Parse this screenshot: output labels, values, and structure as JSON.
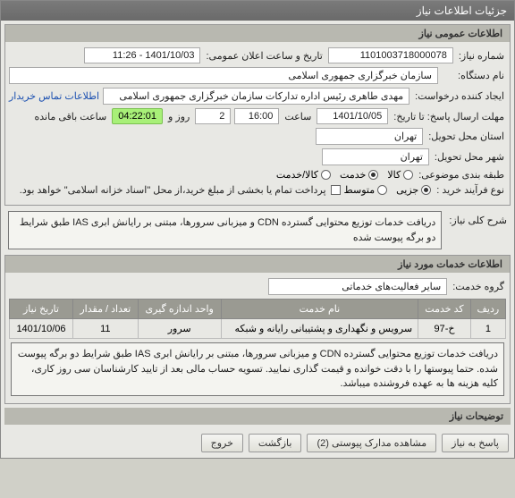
{
  "window": {
    "title": "جزئیات اطلاعات نیاز"
  },
  "general": {
    "header": "اطلاعات عمومی نیاز",
    "need_no_label": "شماره نیاز:",
    "need_no": "1101003718000078",
    "publish_label": "تاریخ و ساعت اعلان عمومی:",
    "publish_value": "1401/10/03 - 11:26",
    "org_label": "نام دستگاه:",
    "org_value": "سازمان خبرگزاری جمهوری اسلامی",
    "creator_label": "ایجاد کننده درخواست:",
    "creator_value": "مهدی طاهری رئیس اداره تدارکات سازمان خبرگزاری جمهوری اسلامی",
    "contact_link": "اطلاعات تماس خریدار",
    "deadline_label": "مهلت ارسال پاسخ: تا تاریخ:",
    "deadline_date": "1401/10/05",
    "time_label": "ساعت",
    "deadline_time": "16:00",
    "days_remaining": "2",
    "days_label": "روز و",
    "time_remaining": "04:22:01",
    "hours_label": "ساعت باقی مانده",
    "delivery_province_label": "استان محل تحویل:",
    "delivery_province": "تهران",
    "delivery_city_label": "شهر محل تحویل:",
    "delivery_city": "تهران",
    "budget_label": "طبقه بندی موضوعی:",
    "radio_kala": "کالا",
    "radio_khedmat": "خدمت",
    "radio_kalakhedmat": "کالا/خدمت",
    "purchase_type_label": "نوع فرآیند خرید :",
    "radio_partial": "جزیی",
    "radio_medium": "متوسط",
    "bottom_note": "پرداخت تمام یا بخشی از مبلغ خرید،از محل \"اسناد خزانه اسلامی\" خواهد بود."
  },
  "need_desc": {
    "label": "شرح کلی نیاز:",
    "text": "دریافت خدمات توزیع محتوایی گسترده CDN و میزبانی سرورها، مبتنی بر رایانش ابری IAS طبق شرایط دو برگه پیوست شده"
  },
  "services": {
    "header": "اطلاعات خدمات مورد نیاز",
    "group_label": "گروه خدمت:",
    "group_value": "سایر فعالیت‌های خدماتی",
    "columns": {
      "row": "ردیف",
      "code": "کد خدمت",
      "name": "نام خدمت",
      "unit": "واحد اندازه گیری",
      "qty": "تعداد / مقدار",
      "date": "تاریخ نیاز"
    },
    "rows": [
      {
        "row": "1",
        "code": "خ-97",
        "name": "سرویس و نگهداری و پشتیبانی رایانه و شبکه",
        "unit": "سرور",
        "qty": "11",
        "date": "1401/10/06"
      }
    ],
    "detail_text": "دریافت خدمات توزیع محتوایی گسترده CDN و میزبانی سرورها، مبتنی بر رایانش ابری IAS طبق شرایط دو برگه پیوست شده. حتما پیوستها را با دقت خوانده و قیمت گذاری نمایید. تسویه حساب مالی بعد از تایید کارشناسان سی روز کاری، کلیه هزینه ها به عهده فروشنده میباشد."
  },
  "notes_header": "توضیحات نیاز",
  "buttons": {
    "respond": "پاسخ به نیاز",
    "attachments": "مشاهده مدارک پیوستی (2)",
    "back": "بازگشت",
    "exit": "خروج"
  }
}
